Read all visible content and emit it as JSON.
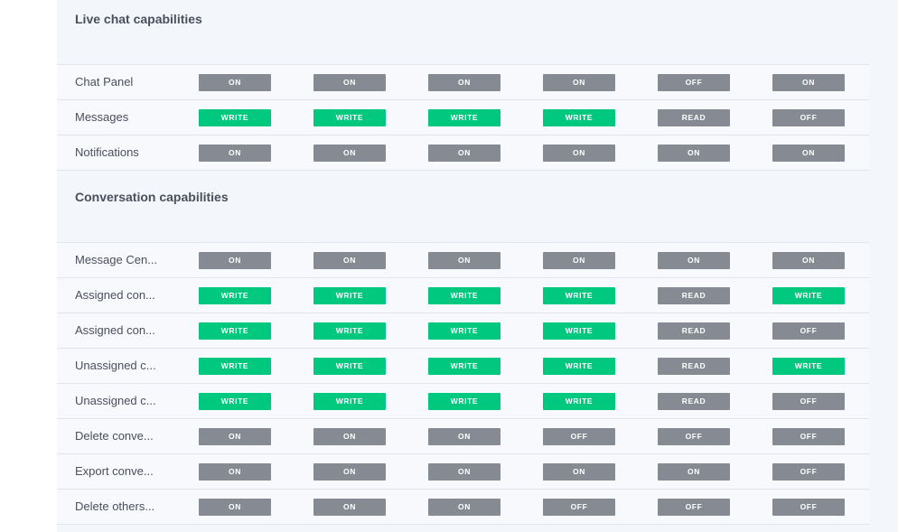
{
  "colors": {
    "write": "#00c87e",
    "neutral": "#858a93",
    "panel": "#f3f6fb",
    "text": "#4a4f5c"
  },
  "sections": [
    {
      "title": "Live chat capabilities",
      "rows": [
        {
          "label": "Chat Panel",
          "values": [
            "ON",
            "ON",
            "ON",
            "ON",
            "OFF",
            "ON"
          ]
        },
        {
          "label": "Messages",
          "values": [
            "WRITE",
            "WRITE",
            "WRITE",
            "WRITE",
            "READ",
            "OFF"
          ]
        },
        {
          "label": "Notifications",
          "values": [
            "ON",
            "ON",
            "ON",
            "ON",
            "ON",
            "ON"
          ]
        }
      ]
    },
    {
      "title": "Conversation capabilities",
      "rows": [
        {
          "label": "Message Cen...",
          "values": [
            "ON",
            "ON",
            "ON",
            "ON",
            "ON",
            "ON"
          ]
        },
        {
          "label": "Assigned con...",
          "values": [
            "WRITE",
            "WRITE",
            "WRITE",
            "WRITE",
            "READ",
            "WRITE"
          ]
        },
        {
          "label": "Assigned con...",
          "values": [
            "WRITE",
            "WRITE",
            "WRITE",
            "WRITE",
            "READ",
            "OFF"
          ]
        },
        {
          "label": "Unassigned c...",
          "values": [
            "WRITE",
            "WRITE",
            "WRITE",
            "WRITE",
            "READ",
            "WRITE"
          ]
        },
        {
          "label": "Unassigned c...",
          "values": [
            "WRITE",
            "WRITE",
            "WRITE",
            "WRITE",
            "READ",
            "OFF"
          ]
        },
        {
          "label": "Delete conve...",
          "values": [
            "ON",
            "ON",
            "ON",
            "OFF",
            "OFF",
            "OFF"
          ]
        },
        {
          "label": "Export conve...",
          "values": [
            "ON",
            "ON",
            "ON",
            "ON",
            "ON",
            "OFF"
          ]
        },
        {
          "label": "Delete others...",
          "values": [
            "ON",
            "ON",
            "ON",
            "OFF",
            "OFF",
            "OFF"
          ]
        }
      ]
    }
  ]
}
